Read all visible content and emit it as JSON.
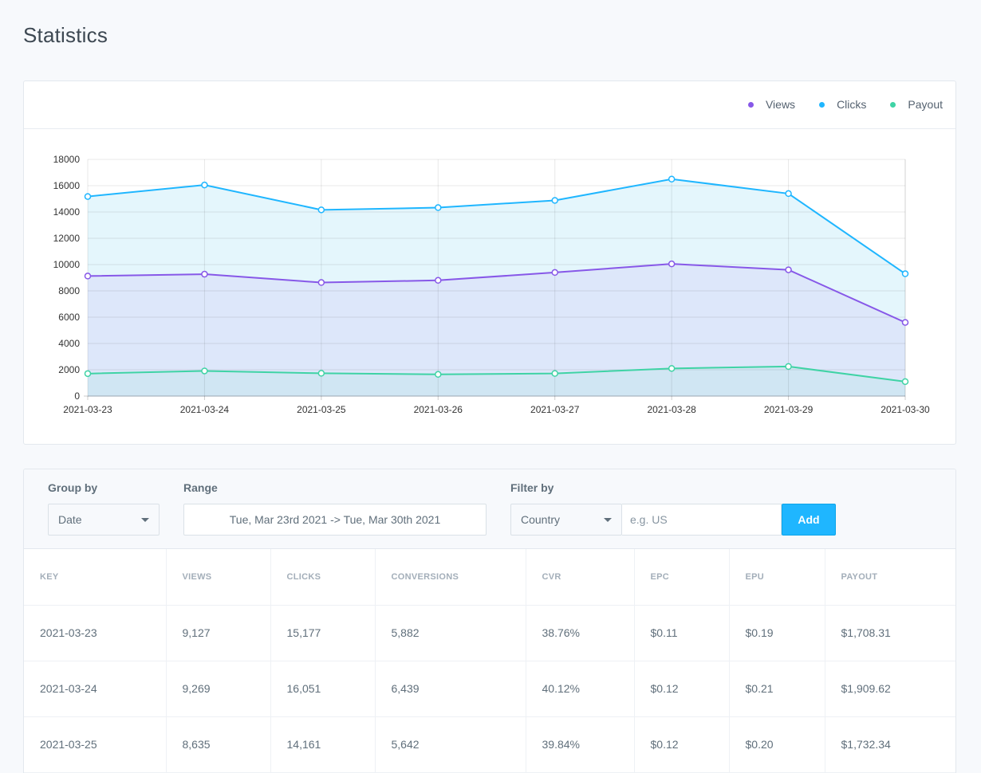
{
  "page": {
    "title": "Statistics"
  },
  "legend": [
    {
      "label": "Views",
      "color": "#8758e8"
    },
    {
      "label": "Clicks",
      "color": "#1fb6ff"
    },
    {
      "label": "Payout",
      "color": "#3fd3a5"
    }
  ],
  "chart_data": {
    "type": "area",
    "categories": [
      "2021-03-23",
      "2021-03-24",
      "2021-03-25",
      "2021-03-26",
      "2021-03-27",
      "2021-03-28",
      "2021-03-29",
      "2021-03-30"
    ],
    "series": [
      {
        "name": "Clicks",
        "color": "#1fb6ff",
        "fill": "#e4f6fc",
        "values": [
          15177,
          16051,
          14161,
          14330,
          14880,
          16500,
          15400,
          9300
        ]
      },
      {
        "name": "Views",
        "color": "#8758e8",
        "fill": "#dde7fa",
        "values": [
          9127,
          9269,
          8635,
          8800,
          9400,
          10050,
          9600,
          5600
        ]
      },
      {
        "name": "Payout",
        "color": "#3fd3a5",
        "fill": "#d0e6f3",
        "values": [
          1708.31,
          1909.62,
          1732.34,
          1650,
          1720,
          2100,
          2250,
          1100
        ]
      }
    ],
    "yticks": [
      "0",
      "2000",
      "4000",
      "6000",
      "8000",
      "10000",
      "12000",
      "14000",
      "16000",
      "18000"
    ],
    "ylim": [
      0,
      18000
    ],
    "grid": true,
    "legend_position": "top-right"
  },
  "filters": {
    "group_label": "Group by",
    "group_value": "Date",
    "range_label": "Range",
    "range_value": "Tue, Mar 23rd 2021 -> Tue, Mar 30th 2021",
    "filter_label": "Filter by",
    "filter_value": "Country",
    "filter_placeholder": "e.g. US",
    "add_label": "Add"
  },
  "table": {
    "columns": [
      "KEY",
      "VIEWS",
      "CLICKS",
      "CONVERSIONS",
      "CVR",
      "EPC",
      "EPU",
      "PAYOUT"
    ],
    "rows": [
      [
        "2021-03-23",
        "9,127",
        "15,177",
        "5,882",
        "38.76%",
        "$0.11",
        "$0.19",
        "$1,708.31"
      ],
      [
        "2021-03-24",
        "9,269",
        "16,051",
        "6,439",
        "40.12%",
        "$0.12",
        "$0.21",
        "$1,909.62"
      ],
      [
        "2021-03-25",
        "8,635",
        "14,161",
        "5,642",
        "39.84%",
        "$0.12",
        "$0.20",
        "$1,732.34"
      ]
    ]
  }
}
